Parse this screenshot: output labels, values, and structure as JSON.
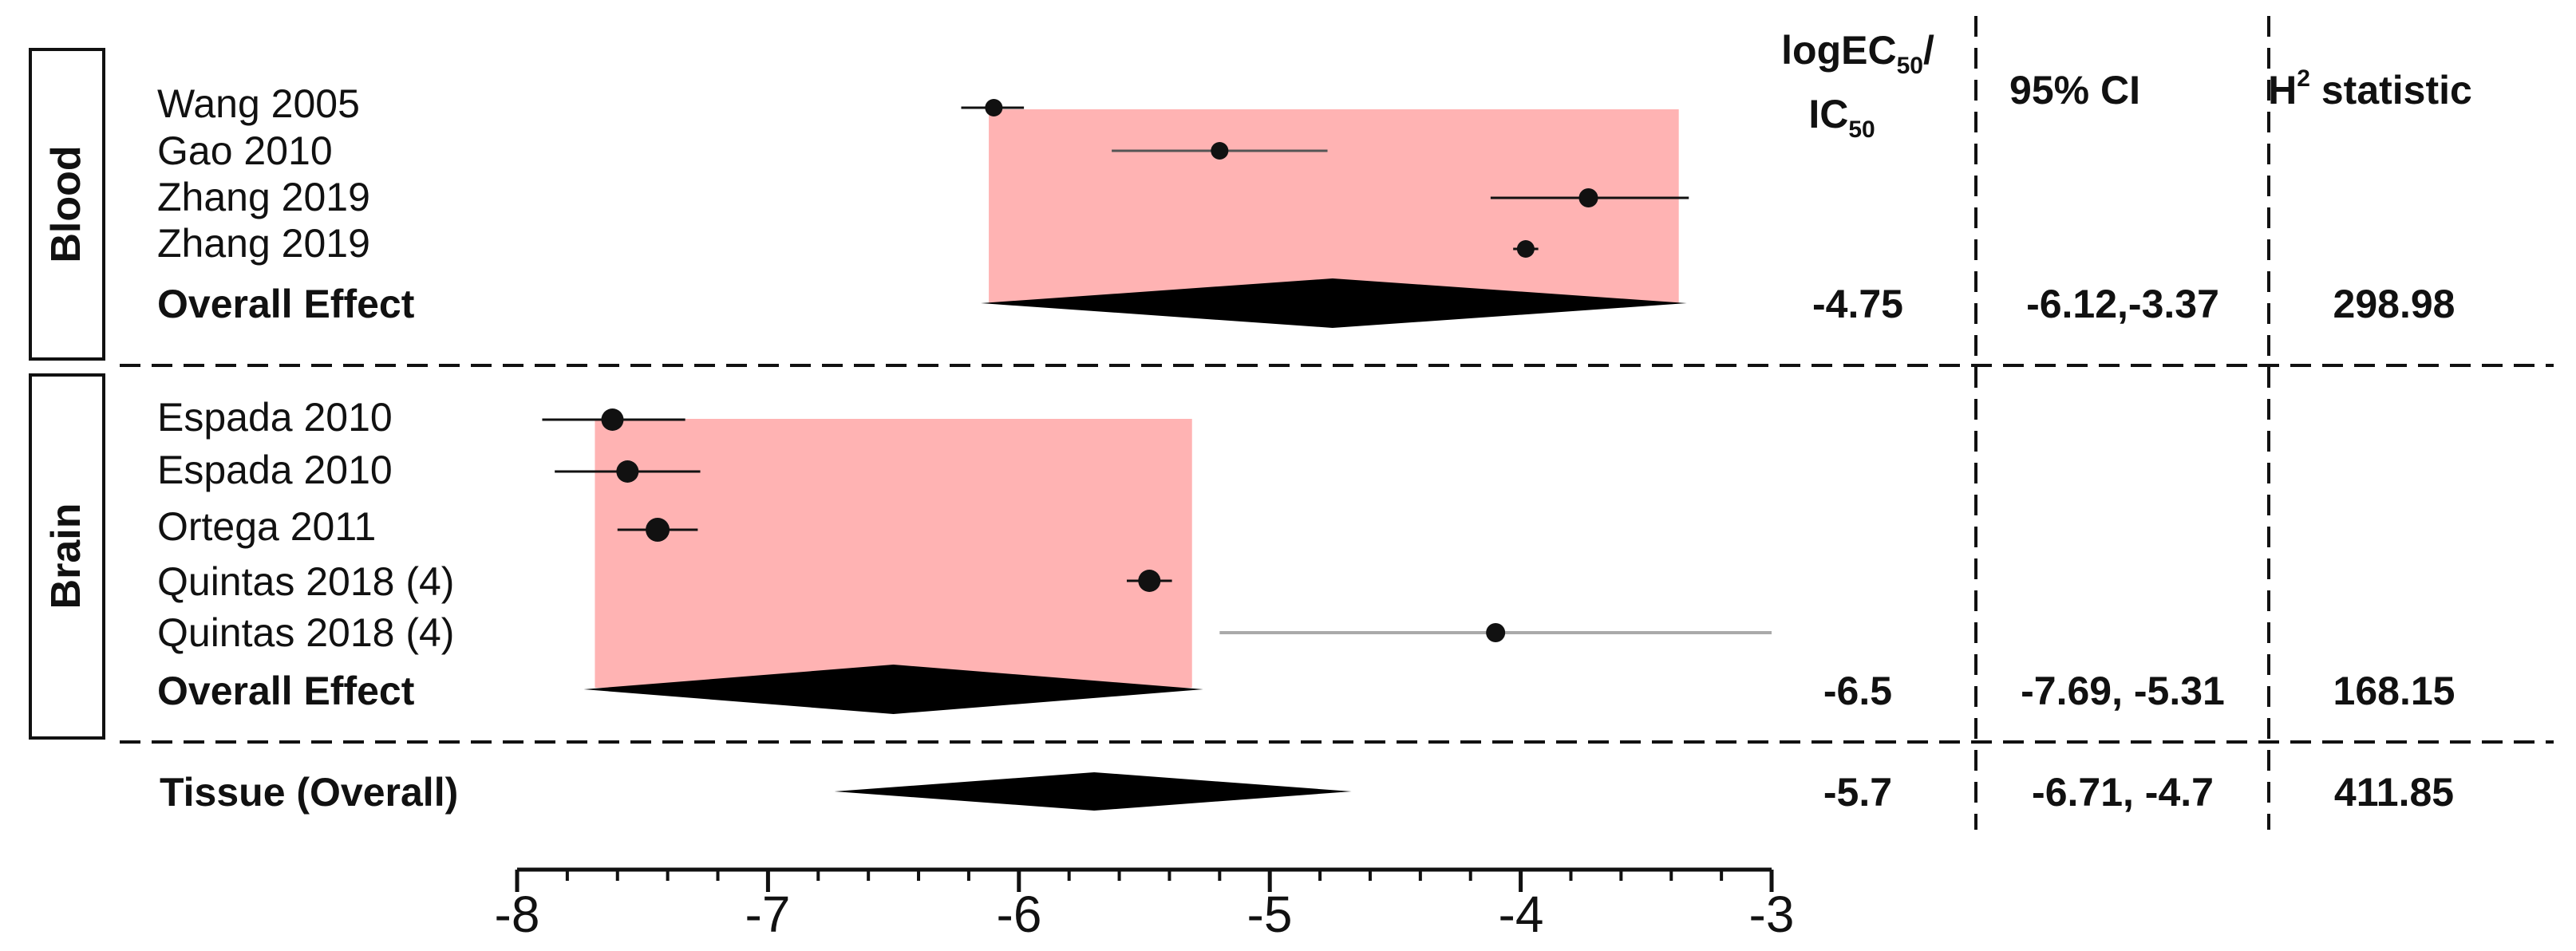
{
  "chart_data": {
    "type": "forest",
    "x_axis": {
      "min": -8,
      "max": -3,
      "major_ticks": [
        -8,
        -7,
        -6,
        -5,
        -4,
        -3
      ],
      "tick_labels": [
        "-8",
        "-7",
        "-6",
        "-5",
        "-4",
        "-3"
      ],
      "minor_tick_step": 0.2
    },
    "columns": {
      "estimate_header": "logEC",
      "estimate_header_sub1": "50",
      "estimate_header_slash": "/",
      "estimate_header_line2": "IC",
      "estimate_header_sub2": "50",
      "ci_header": "95% CI",
      "h2_header_letter": "H",
      "h2_header_sup": "2",
      "h2_header_rest": " statistic"
    },
    "groups": [
      {
        "name": "Blood",
        "box_color": "#ffb3b3",
        "studies": [
          {
            "label": "Wang 2005",
            "estimate": -6.1,
            "ci_low": -6.23,
            "ci_high": -5.98,
            "whisker_color": "#111111"
          },
          {
            "label": "Gao 2010",
            "estimate": -5.2,
            "ci_low": -5.63,
            "ci_high": -4.77,
            "whisker_color": "#555555"
          },
          {
            "label": "Zhang 2019",
            "estimate": -3.73,
            "ci_low": -4.12,
            "ci_high": -3.33,
            "whisker_color": "#111111"
          },
          {
            "label": "Zhang 2019",
            "estimate": -3.98,
            "ci_low": -4.03,
            "ci_high": -3.93,
            "whisker_color": "#111111"
          }
        ],
        "overall": {
          "label": "Overall Effect",
          "estimate": -4.75,
          "ci": "-6.12,-3.37",
          "h2": "298.98",
          "estimate_label": "-4.75",
          "ci_low": -6.12,
          "ci_high": -3.37
        }
      },
      {
        "name": "Brain",
        "box_color": "#ffb3b3",
        "studies": [
          {
            "label": "Espada 2010",
            "estimate": -7.62,
            "ci_low": -7.9,
            "ci_high": -7.33,
            "whisker_color": "#111111"
          },
          {
            "label": "Espada 2010",
            "estimate": -7.56,
            "ci_low": -7.85,
            "ci_high": -7.27,
            "whisker_color": "#111111"
          },
          {
            "label": "Ortega 2011",
            "estimate": -7.44,
            "ci_low": -7.6,
            "ci_high": -7.28,
            "whisker_color": "#111111"
          },
          {
            "label": "Quintas 2018 (4)",
            "estimate": -5.48,
            "ci_low": -5.57,
            "ci_high": -5.39,
            "whisker_color": "#111111"
          },
          {
            "label": "Quintas 2018 (4)",
            "estimate": -4.1,
            "ci_low": -5.2,
            "ci_high": -3.0,
            "whisker_color": "#aaaaaa"
          }
        ],
        "overall": {
          "label": "Overall Effect",
          "estimate": -6.5,
          "ci": "-7.69, -5.31",
          "h2": "168.15",
          "estimate_label": "-6.5",
          "ci_low": -7.69,
          "ci_high": -5.31
        }
      }
    ],
    "total": {
      "label": "Tissue (Overall)",
      "estimate": -5.7,
      "ci": "-6.71, -4.7",
      "h2": "411.85",
      "estimate_label": "-5.7",
      "ci_low": -6.71,
      "ci_high": -4.7
    }
  }
}
